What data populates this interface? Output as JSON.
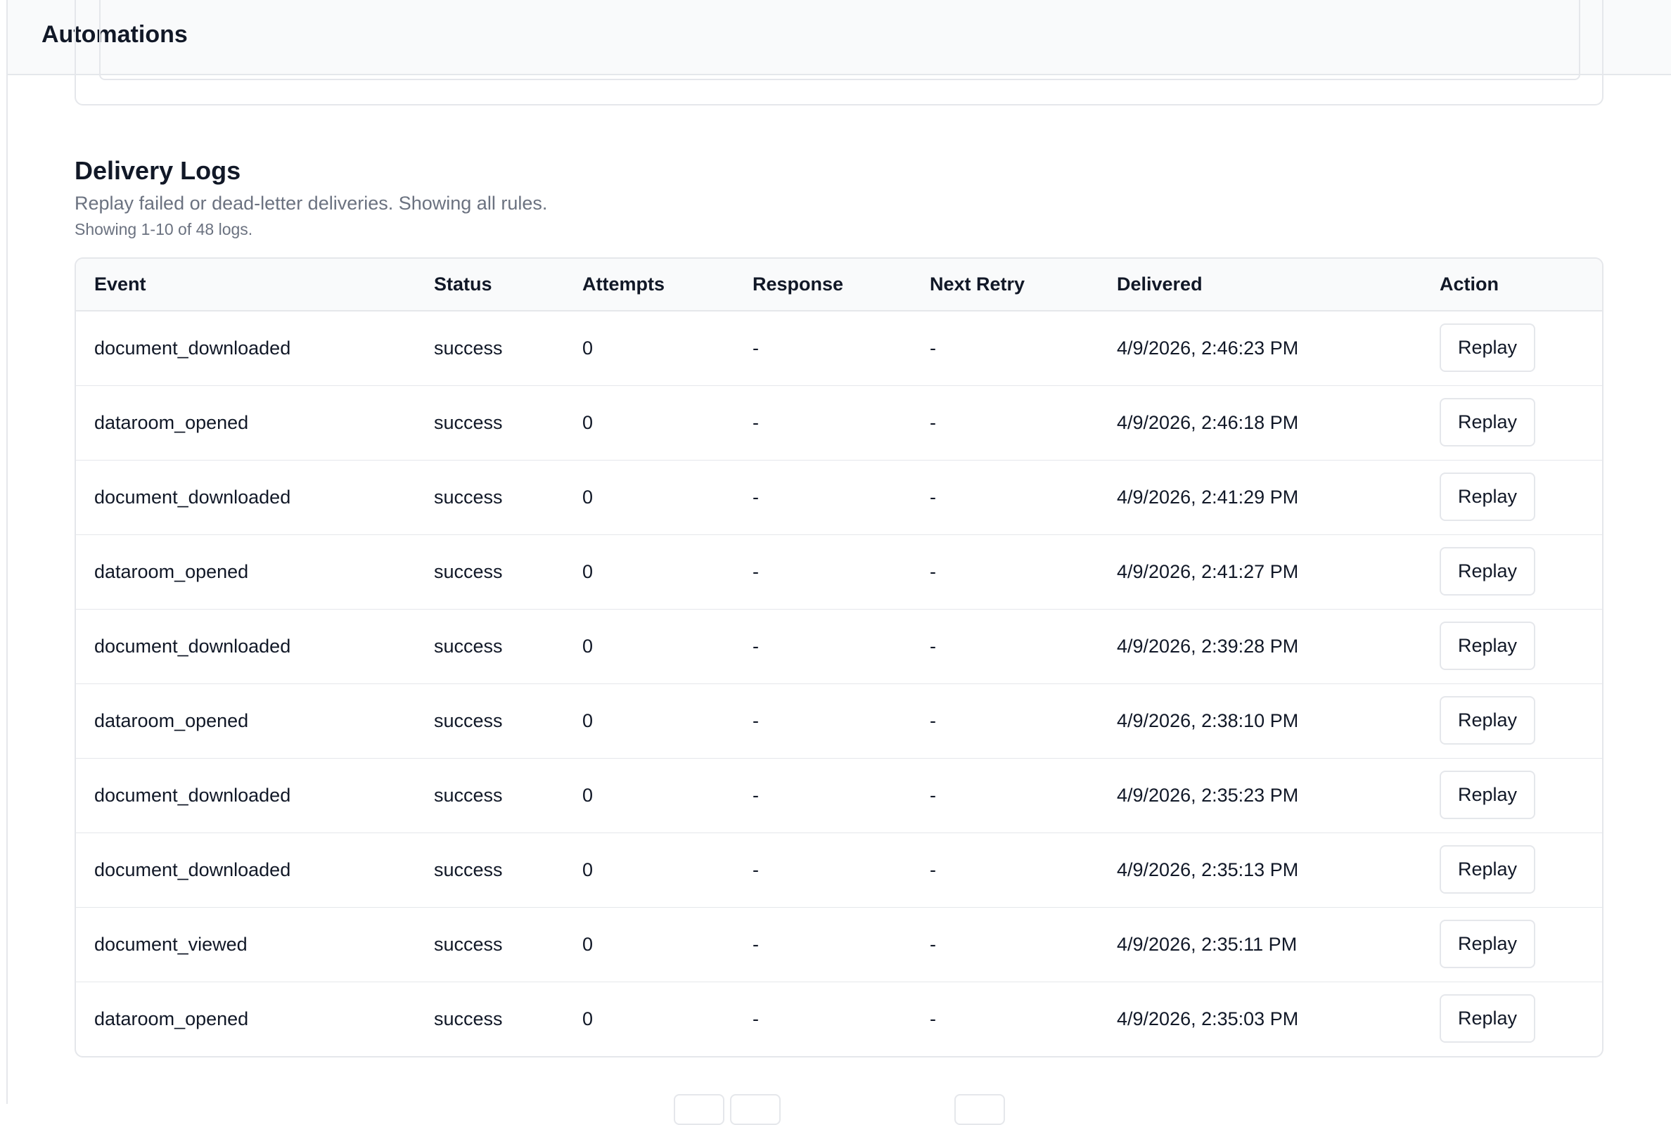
{
  "header": {
    "title": "Automations"
  },
  "section": {
    "title": "Delivery Logs",
    "subtitle": "Replay failed or dead-letter deliveries. Showing all rules.",
    "count": "Showing 1-10 of 48 logs."
  },
  "table": {
    "columns": [
      "Event",
      "Status",
      "Attempts",
      "Response",
      "Next Retry",
      "Delivered",
      "Action"
    ],
    "rows": [
      [
        "document_downloaded",
        "success",
        0,
        "-",
        "-",
        "4/9/2026, 2:46:23 PM",
        "Replay"
      ],
      [
        "dataroom_opened",
        "success",
        0,
        "-",
        "-",
        "4/9/2026, 2:46:18 PM",
        "Replay"
      ],
      [
        "document_downloaded",
        "success",
        0,
        "-",
        "-",
        "4/9/2026, 2:41:29 PM",
        "Replay"
      ],
      [
        "dataroom_opened",
        "success",
        0,
        "-",
        "-",
        "4/9/2026, 2:41:27 PM",
        "Replay"
      ],
      [
        "document_downloaded",
        "success",
        0,
        "-",
        "-",
        "4/9/2026, 2:39:28 PM",
        "Replay"
      ],
      [
        "dataroom_opened",
        "success",
        0,
        "-",
        "-",
        "4/9/2026, 2:38:10 PM",
        "Replay"
      ],
      [
        "document_downloaded",
        "success",
        0,
        "-",
        "-",
        "4/9/2026, 2:35:23 PM",
        "Replay"
      ],
      [
        "document_downloaded",
        "success",
        0,
        "-",
        "-",
        "4/9/2026, 2:35:13 PM",
        "Replay"
      ],
      [
        "document_viewed",
        "success",
        0,
        "-",
        "-",
        "4/9/2026, 2:35:11 PM",
        "Replay"
      ],
      [
        "dataroom_opened",
        "success",
        0,
        "-",
        "-",
        "4/9/2026, 2:35:03 PM",
        "Replay"
      ]
    ]
  }
}
